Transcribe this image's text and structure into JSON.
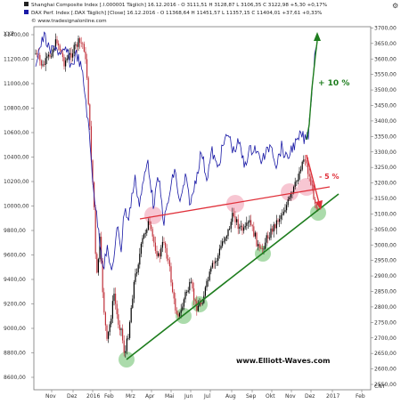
{
  "chart_data": {
    "type": "line",
    "header": {
      "line1": "Shanghai Composite Index [.I.000001  Täglich] 16.12.2016 - O 3111,51  H 3128,87  L 3106,35  C 3122,98 +5,30 +0,17%",
      "line2": "DAX Perf. Index [.DAX  Täglich] [Close] 16.12.2016 - O 11368,64  H 11451,57  L 11357,15  C 11404,01 +37,61 +0,33%",
      "line3": "© www.tradesignalonline.com"
    },
    "left_axis_unit": "XXP",
    "right_axis_unit": "CNY",
    "left_ticks": [
      "8600,00",
      "8800,00",
      "9000,00",
      "9200,00",
      "9400,00",
      "9600,00",
      "9800,00",
      "10000,00",
      "10200,00",
      "10400,00",
      "10600,00",
      "10800,00",
      "11000,00",
      "11200,00",
      "11400,00"
    ],
    "right_ticks": [
      "2550,00",
      "2600,00",
      "2650,00",
      "2700,00",
      "2750,00",
      "2800,00",
      "2850,00",
      "2900,00",
      "2950,00",
      "3000,00",
      "3050,00",
      "3100,00",
      "3150,00",
      "3200,00",
      "3250,00",
      "3300,00",
      "3350,00",
      "3400,00",
      "3450,00",
      "3500,00",
      "3550,00",
      "3600,00",
      "3650,00",
      "3700,00",
      "3750,00"
    ],
    "x_ticks": [
      "Nov",
      "Dez",
      "2016",
      "Feb",
      "Mrz",
      "Apr",
      "Mai",
      "Jun",
      "Jul",
      "Aug",
      "Sep",
      "Okt",
      "Nov",
      "Dez",
      "2017",
      "Feb"
    ],
    "series": [
      {
        "name": "Shanghai Composite Index",
        "style": "candlestick",
        "color": "#000000"
      },
      {
        "name": "DAX Perf. Index",
        "style": "line",
        "color": "#1a1aa6"
      }
    ],
    "annotations": {
      "plus_label": "+ 10 %",
      "minus_label": "- 5 %",
      "watermark": "www.Elliott-Waves.com"
    },
    "colors": {
      "support_line": "#1e7d1e",
      "resistance_line": "#e0303a",
      "up_arrow": "#1e7d1e",
      "down_arrow": "#e0303a",
      "dax_line": "#1a1aa6",
      "candles": "#000000",
      "touch_green": "#8fcf8f",
      "touch_pink": "#f2a0b4"
    }
  }
}
